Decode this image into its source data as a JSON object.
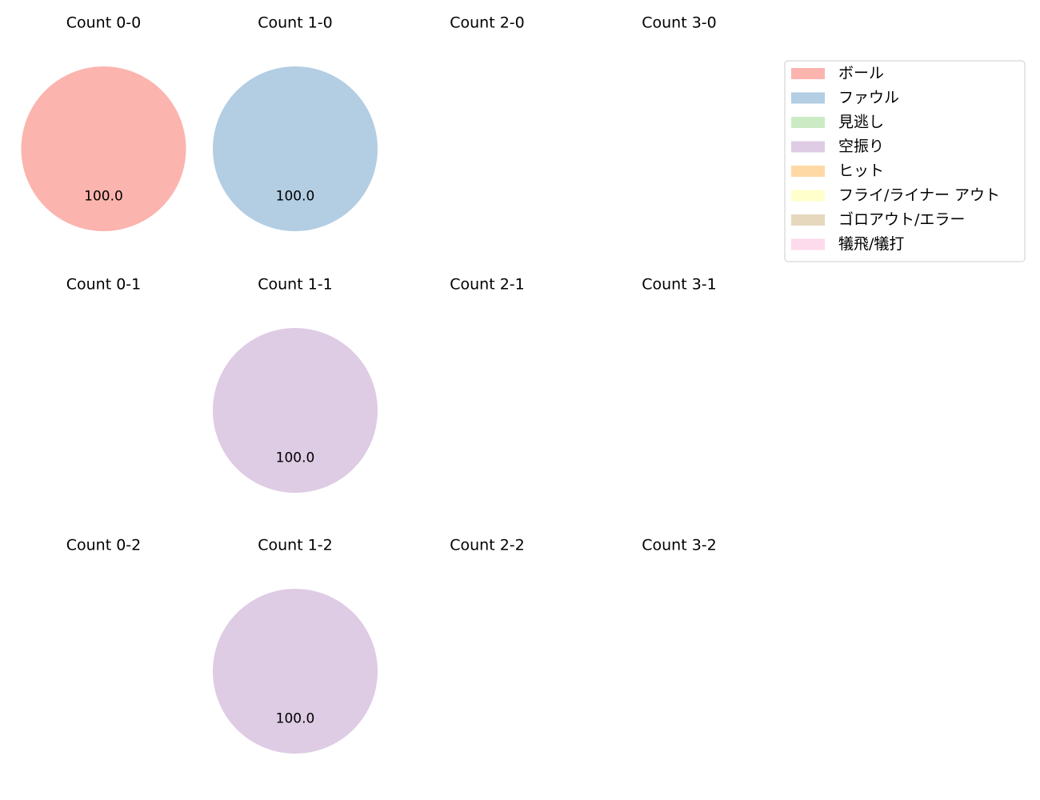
{
  "chart_data": {
    "type": "pie",
    "layout": "grid of pie charts, 3 rows x 4 columns",
    "legend": {
      "placement": "top-right",
      "entries": [
        {
          "label": "ボール",
          "color": "#fbb4ae"
        },
        {
          "label": "ファウル",
          "color": "#b3cde3"
        },
        {
          "label": "見逃し",
          "color": "#ccebc5"
        },
        {
          "label": "空振り",
          "color": "#decbe4"
        },
        {
          "label": "ヒット",
          "color": "#fed9a6"
        },
        {
          "label": "フライ/ライナー アウト",
          "color": "#ffffcc"
        },
        {
          "label": "ゴロアウト/エラー",
          "color": "#e5d8bd"
        },
        {
          "label": "犠飛/犠打",
          "color": "#fddaec"
        }
      ]
    },
    "panels": [
      {
        "title": "Count 0-0",
        "slices": [
          {
            "category": "ボール",
            "value": 100.0,
            "label": "100.0"
          }
        ]
      },
      {
        "title": "Count 1-0",
        "slices": [
          {
            "category": "ファウル",
            "value": 100.0,
            "label": "100.0"
          }
        ]
      },
      {
        "title": "Count 2-0",
        "slices": []
      },
      {
        "title": "Count 3-0",
        "slices": []
      },
      {
        "title": "Count 0-1",
        "slices": []
      },
      {
        "title": "Count 1-1",
        "slices": [
          {
            "category": "空振り",
            "value": 100.0,
            "label": "100.0"
          }
        ]
      },
      {
        "title": "Count 2-1",
        "slices": []
      },
      {
        "title": "Count 3-1",
        "slices": []
      },
      {
        "title": "Count 0-2",
        "slices": []
      },
      {
        "title": "Count 1-2",
        "slices": [
          {
            "category": "空振り",
            "value": 100.0,
            "label": "100.0"
          }
        ]
      },
      {
        "title": "Count 2-2",
        "slices": []
      },
      {
        "title": "Count 3-2",
        "slices": []
      }
    ]
  }
}
